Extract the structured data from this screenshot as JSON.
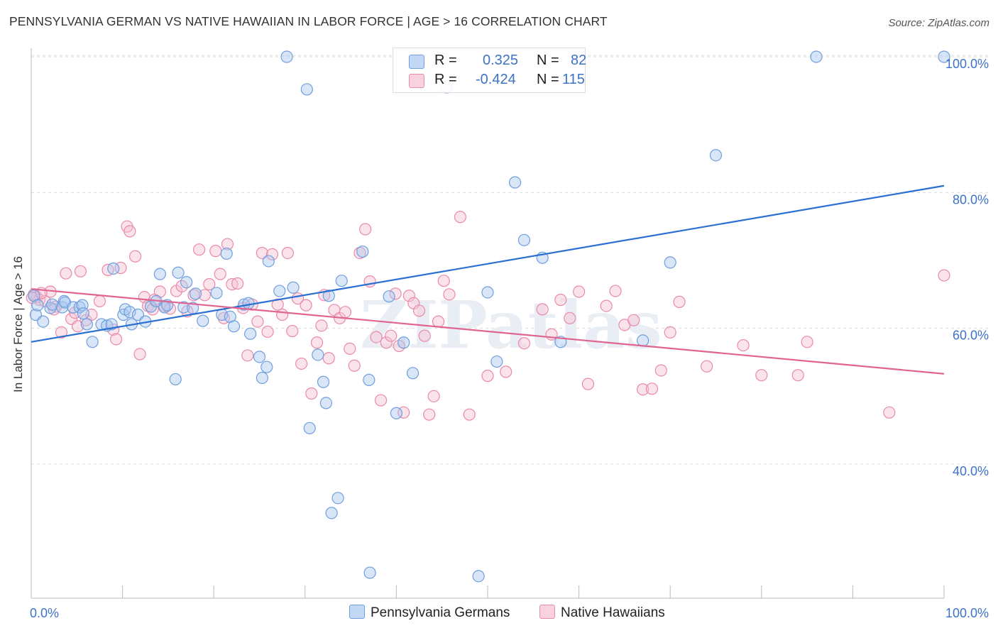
{
  "title": "PENNSYLVANIA GERMAN VS NATIVE HAWAIIAN IN LABOR FORCE | AGE > 16 CORRELATION CHART",
  "source": "Source: ZipAtlas.com",
  "watermark": "ZIPatlas",
  "legend": {
    "series1": {
      "r_label": "R =",
      "r_value": "0.325",
      "n_label": "N =",
      "n_value": "82"
    },
    "series2": {
      "r_label": "R =",
      "r_value": "-0.424",
      "n_label": "N =",
      "n_value": "115"
    }
  },
  "colors": {
    "blue_fill": "#a9c8f0",
    "blue_stroke": "#6f9fde",
    "blue_line": "#2a6fd1",
    "pink_fill": "#f6c1d2",
    "pink_stroke": "#e98aaa",
    "pink_line": "#e0648f",
    "tick_label": "#3d72c8"
  },
  "chart_data": {
    "type": "scatter",
    "title": "PENNSYLVANIA GERMAN VS NATIVE HAWAIIAN IN LABOR FORCE | AGE > 16 CORRELATION CHART",
    "xlabel": "",
    "ylabel": "In Labor Force | Age > 16",
    "xlim": [
      0,
      100
    ],
    "ylim": [
      20,
      103
    ],
    "x_tick_labels": [
      "0.0%",
      "100.0%"
    ],
    "y_ticks": [
      40,
      60,
      80,
      100
    ],
    "y_tick_labels": [
      "40.0%",
      "60.0%",
      "80.0%",
      "100.0%"
    ],
    "grid": true,
    "legend_position": "top-center",
    "series": [
      {
        "name": "Pennsylvania Germans",
        "trend": {
          "x": [
            0,
            100
          ],
          "y": [
            58.0,
            81.0
          ]
        },
        "points": [
          [
            0.3,
            64.8
          ],
          [
            0.5,
            62.0
          ],
          [
            0.7,
            63.4
          ],
          [
            1.3,
            61.0
          ],
          [
            2.1,
            63.0
          ],
          [
            2.3,
            63.5
          ],
          [
            3.4,
            63.1
          ],
          [
            3.6,
            64.0
          ],
          [
            3.7,
            63.8
          ],
          [
            4.6,
            63.1
          ],
          [
            5.3,
            63.1
          ],
          [
            5.6,
            63.4
          ],
          [
            5.7,
            62.2
          ],
          [
            6.1,
            60.6
          ],
          [
            6.7,
            58.0
          ],
          [
            7.7,
            60.6
          ],
          [
            8.3,
            60.4
          ],
          [
            8.8,
            60.6
          ],
          [
            9.0,
            68.8
          ],
          [
            10.1,
            62.0
          ],
          [
            10.3,
            62.8
          ],
          [
            10.8,
            62.4
          ],
          [
            11.0,
            60.6
          ],
          [
            11.7,
            62.0
          ],
          [
            12.5,
            61.0
          ],
          [
            13.1,
            63.2
          ],
          [
            13.7,
            64.0
          ],
          [
            14.1,
            68.0
          ],
          [
            14.6,
            63.1
          ],
          [
            14.9,
            63.4
          ],
          [
            15.8,
            52.5
          ],
          [
            16.1,
            68.2
          ],
          [
            16.7,
            63.1
          ],
          [
            17.0,
            66.8
          ],
          [
            17.7,
            63.0
          ],
          [
            18.0,
            65.1
          ],
          [
            18.8,
            61.1
          ],
          [
            20.3,
            65.2
          ],
          [
            20.9,
            62.0
          ],
          [
            21.4,
            71.0
          ],
          [
            21.8,
            61.7
          ],
          [
            22.2,
            60.3
          ],
          [
            23.3,
            63.5
          ],
          [
            23.8,
            63.7
          ],
          [
            24.0,
            59.2
          ],
          [
            25.0,
            55.8
          ],
          [
            25.3,
            52.7
          ],
          [
            25.8,
            54.3
          ],
          [
            26.0,
            69.9
          ],
          [
            27.2,
            65.5
          ],
          [
            28.0,
            100.0
          ],
          [
            28.7,
            66.0
          ],
          [
            30.2,
            95.2
          ],
          [
            30.5,
            45.3
          ],
          [
            31.4,
            56.1
          ],
          [
            32.0,
            52.1
          ],
          [
            32.3,
            49.0
          ],
          [
            32.6,
            64.8
          ],
          [
            32.9,
            32.8
          ],
          [
            33.6,
            35.0
          ],
          [
            34.0,
            67.0
          ],
          [
            36.3,
            71.3
          ],
          [
            37.0,
            52.4
          ],
          [
            37.1,
            24.0
          ],
          [
            39.2,
            64.7
          ],
          [
            40.0,
            47.5
          ],
          [
            40.8,
            57.9
          ],
          [
            41.8,
            53.4
          ],
          [
            45.0,
            99.8
          ],
          [
            45.5,
            95.5
          ],
          [
            49.0,
            23.5
          ],
          [
            50.0,
            65.3
          ],
          [
            51.0,
            55.1
          ],
          [
            53.0,
            81.5
          ],
          [
            54.0,
            73.0
          ],
          [
            56.0,
            70.4
          ],
          [
            58.0,
            58.0
          ],
          [
            67.0,
            58.2
          ],
          [
            70.0,
            69.7
          ],
          [
            75.0,
            85.5
          ],
          [
            86.0,
            100.0
          ],
          [
            100.0,
            100.0
          ]
        ]
      },
      {
        "name": "Native Hawaiians",
        "trend": {
          "x": [
            0,
            100
          ],
          "y": [
            65.8,
            53.3
          ]
        },
        "points": [
          [
            0.3,
            65.0
          ],
          [
            0.6,
            64.6
          ],
          [
            0.9,
            64.2
          ],
          [
            1.5,
            64.0
          ],
          [
            2.1,
            65.4
          ],
          [
            2.7,
            63.2
          ],
          [
            3.3,
            59.4
          ],
          [
            3.8,
            68.1
          ],
          [
            4.4,
            61.4
          ],
          [
            4.8,
            62.3
          ],
          [
            5.1,
            60.3
          ],
          [
            5.4,
            68.4
          ],
          [
            6.0,
            61.2
          ],
          [
            6.6,
            62.0
          ],
          [
            7.5,
            64.0
          ],
          [
            8.4,
            68.6
          ],
          [
            9.0,
            59.8
          ],
          [
            9.3,
            58.4
          ],
          [
            9.8,
            68.9
          ],
          [
            10.5,
            75.0
          ],
          [
            10.8,
            74.3
          ],
          [
            11.4,
            70.6
          ],
          [
            11.9,
            56.2
          ],
          [
            12.4,
            64.6
          ],
          [
            12.8,
            63.3
          ],
          [
            13.3,
            62.8
          ],
          [
            13.5,
            64.2
          ],
          [
            14.1,
            65.4
          ],
          [
            14.6,
            63.3
          ],
          [
            15.2,
            62.9
          ],
          [
            15.9,
            65.5
          ],
          [
            16.5,
            66.2
          ],
          [
            17.1,
            62.5
          ],
          [
            17.8,
            64.9
          ],
          [
            18.4,
            71.6
          ],
          [
            19.0,
            64.9
          ],
          [
            19.5,
            66.5
          ],
          [
            20.2,
            71.4
          ],
          [
            20.7,
            68.0
          ],
          [
            21.1,
            61.5
          ],
          [
            21.5,
            72.4
          ],
          [
            22.0,
            66.5
          ],
          [
            22.6,
            66.6
          ],
          [
            23.2,
            63.0
          ],
          [
            23.7,
            56.0
          ],
          [
            24.2,
            63.5
          ],
          [
            24.8,
            61.0
          ],
          [
            25.3,
            71.1
          ],
          [
            25.9,
            59.5
          ],
          [
            26.4,
            70.9
          ],
          [
            27.0,
            63.5
          ],
          [
            27.5,
            62.0
          ],
          [
            28.1,
            71.1
          ],
          [
            28.6,
            59.6
          ],
          [
            29.2,
            64.4
          ],
          [
            29.6,
            54.8
          ],
          [
            30.1,
            63.4
          ],
          [
            30.7,
            50.4
          ],
          [
            31.3,
            57.9
          ],
          [
            31.8,
            60.4
          ],
          [
            32.1,
            64.9
          ],
          [
            32.6,
            55.6
          ],
          [
            33.2,
            62.7
          ],
          [
            33.8,
            61.5
          ],
          [
            34.4,
            62.4
          ],
          [
            34.9,
            57.0
          ],
          [
            35.4,
            54.5
          ],
          [
            36.0,
            71.1
          ],
          [
            36.6,
            74.6
          ],
          [
            37.1,
            66.9
          ],
          [
            37.8,
            58.7
          ],
          [
            38.3,
            49.4
          ],
          [
            38.9,
            57.9
          ],
          [
            39.4,
            58.9
          ],
          [
            39.9,
            65.1
          ],
          [
            40.3,
            57.4
          ],
          [
            40.8,
            47.6
          ],
          [
            41.4,
            64.8
          ],
          [
            41.9,
            63.7
          ],
          [
            42.5,
            62.6
          ],
          [
            43.1,
            58.9
          ],
          [
            43.6,
            47.3
          ],
          [
            44.1,
            50.0
          ],
          [
            44.6,
            61.0
          ],
          [
            45.2,
            67.0
          ],
          [
            45.8,
            65.0
          ],
          [
            47.0,
            76.4
          ],
          [
            48.0,
            47.3
          ],
          [
            50.0,
            53.0
          ],
          [
            52.0,
            53.6
          ],
          [
            54.0,
            57.8
          ],
          [
            56.0,
            62.8
          ],
          [
            57.0,
            59.1
          ],
          [
            58.0,
            64.2
          ],
          [
            59.0,
            61.5
          ],
          [
            60.0,
            65.4
          ],
          [
            61.0,
            51.8
          ],
          [
            63.0,
            63.3
          ],
          [
            64.0,
            65.5
          ],
          [
            65.0,
            60.5
          ],
          [
            66.0,
            61.2
          ],
          [
            67.0,
            51.0
          ],
          [
            68.0,
            51.1
          ],
          [
            69.0,
            53.8
          ],
          [
            70.0,
            59.4
          ],
          [
            71.0,
            63.9
          ],
          [
            74.0,
            54.4
          ],
          [
            78.0,
            57.5
          ],
          [
            80.0,
            53.1
          ],
          [
            84.0,
            53.1
          ],
          [
            85.0,
            58.0
          ],
          [
            94.0,
            47.6
          ],
          [
            100.0,
            67.8
          ],
          [
            0.1,
            64.5
          ],
          [
            1.1,
            65.2
          ],
          [
            2.5,
            62.8
          ]
        ]
      }
    ]
  }
}
